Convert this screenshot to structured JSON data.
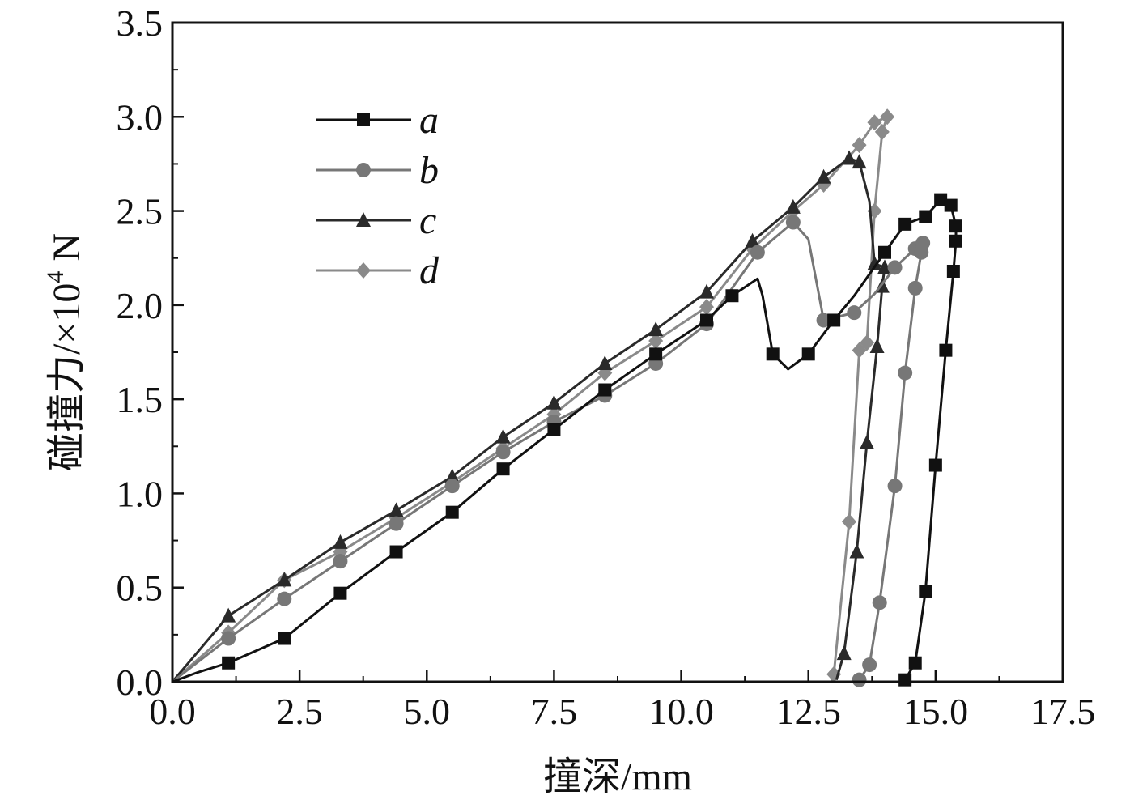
{
  "chart_data": {
    "type": "line",
    "xlabel": "撞深/mm",
    "ylabel_main": "碰撞力/×10",
    "ylabel_sup": "4",
    "ylabel_unit": " N",
    "xlim": [
      0,
      17.5
    ],
    "ylim": [
      0,
      3.5
    ],
    "x_ticks": [
      0,
      2.5,
      5,
      7.5,
      10,
      12.5,
      15,
      17.5
    ],
    "y_ticks": [
      0,
      0.5,
      1,
      1.5,
      2,
      2.5,
      3,
      3.5
    ],
    "x_tick_labels": [
      "0.0",
      "2.5",
      "5.0",
      "7.5",
      "10.0",
      "12.5",
      "15.0",
      "17.5"
    ],
    "y_tick_labels": [
      "0.0",
      "0.5",
      "1.0",
      "1.5",
      "2.0",
      "2.5",
      "3.0",
      "3.5"
    ],
    "grid": false,
    "legend_position": "top-left",
    "series": [
      {
        "name": "a",
        "color": "#111111",
        "marker": "square",
        "line": [
          [
            0,
            0
          ],
          [
            0.5,
            0.05
          ],
          [
            1.1,
            0.1
          ],
          [
            2.2,
            0.23
          ],
          [
            3.3,
            0.47
          ],
          [
            4.4,
            0.69
          ],
          [
            5.5,
            0.9
          ],
          [
            6.5,
            1.13
          ],
          [
            7.5,
            1.34
          ],
          [
            8.5,
            1.55
          ],
          [
            9.5,
            1.74
          ],
          [
            10.5,
            1.92
          ],
          [
            11,
            2.05
          ],
          [
            11.5,
            2.14
          ],
          [
            11.6,
            2.05
          ],
          [
            11.8,
            1.74
          ],
          [
            12.1,
            1.66
          ],
          [
            12.5,
            1.74
          ],
          [
            13,
            1.92
          ],
          [
            13.4,
            2.05
          ],
          [
            14,
            2.28
          ],
          [
            14.4,
            2.43
          ],
          [
            14.8,
            2.47
          ],
          [
            15.1,
            2.56
          ],
          [
            15.3,
            2.53
          ],
          [
            15.4,
            2.42
          ],
          [
            15.4,
            2.34
          ],
          [
            15.35,
            2.18
          ],
          [
            15.2,
            1.76
          ],
          [
            15,
            1.15
          ],
          [
            14.8,
            0.48
          ],
          [
            14.6,
            0.1
          ],
          [
            14.4,
            0.01
          ]
        ],
        "markers": [
          [
            1.1,
            0.1
          ],
          [
            2.2,
            0.23
          ],
          [
            3.3,
            0.47
          ],
          [
            4.4,
            0.69
          ],
          [
            5.5,
            0.9
          ],
          [
            6.5,
            1.13
          ],
          [
            7.5,
            1.34
          ],
          [
            8.5,
            1.55
          ],
          [
            9.5,
            1.74
          ],
          [
            10.5,
            1.92
          ],
          [
            11,
            2.05
          ],
          [
            11.8,
            1.74
          ],
          [
            12.5,
            1.74
          ],
          [
            13,
            1.92
          ],
          [
            14,
            2.28
          ],
          [
            14.4,
            2.43
          ],
          [
            14.8,
            2.47
          ],
          [
            15.1,
            2.56
          ],
          [
            15.3,
            2.53
          ],
          [
            15.4,
            2.42
          ],
          [
            15.4,
            2.34
          ],
          [
            15.35,
            2.18
          ],
          [
            15.2,
            1.76
          ],
          [
            15,
            1.15
          ],
          [
            14.8,
            0.48
          ],
          [
            14.6,
            0.1
          ],
          [
            14.4,
            0.01
          ]
        ]
      },
      {
        "name": "b",
        "color": "#777777",
        "marker": "circle",
        "line": [
          [
            0,
            0
          ],
          [
            1.1,
            0.23
          ],
          [
            2.2,
            0.44
          ],
          [
            3.3,
            0.64
          ],
          [
            4.4,
            0.84
          ],
          [
            5.5,
            1.04
          ],
          [
            6.5,
            1.22
          ],
          [
            7.5,
            1.38
          ],
          [
            8.5,
            1.52
          ],
          [
            9.5,
            1.69
          ],
          [
            10.5,
            1.9
          ],
          [
            11.5,
            2.28
          ],
          [
            12.2,
            2.44
          ],
          [
            12.5,
            2.35
          ],
          [
            12.8,
            1.92
          ],
          [
            13.4,
            1.96
          ],
          [
            13.8,
            2.06
          ],
          [
            14.2,
            2.2
          ],
          [
            14.6,
            2.3
          ],
          [
            14.75,
            2.33
          ],
          [
            14.72,
            2.28
          ],
          [
            14.6,
            2.09
          ],
          [
            14.4,
            1.64
          ],
          [
            14.2,
            1.04
          ],
          [
            13.9,
            0.42
          ],
          [
            13.7,
            0.09
          ],
          [
            13.5,
            0.01
          ]
        ],
        "markers": [
          [
            1.1,
            0.23
          ],
          [
            2.2,
            0.44
          ],
          [
            3.3,
            0.64
          ],
          [
            4.4,
            0.84
          ],
          [
            5.5,
            1.04
          ],
          [
            6.5,
            1.22
          ],
          [
            7.5,
            1.38
          ],
          [
            8.5,
            1.52
          ],
          [
            9.5,
            1.69
          ],
          [
            10.5,
            1.9
          ],
          [
            11.5,
            2.28
          ],
          [
            12.2,
            2.44
          ],
          [
            12.8,
            1.92
          ],
          [
            13.4,
            1.96
          ],
          [
            14.2,
            2.2
          ],
          [
            14.6,
            2.3
          ],
          [
            14.75,
            2.33
          ],
          [
            14.72,
            2.28
          ],
          [
            14.6,
            2.09
          ],
          [
            14.4,
            1.64
          ],
          [
            14.2,
            1.04
          ],
          [
            13.9,
            0.42
          ],
          [
            13.7,
            0.09
          ],
          [
            13.5,
            0.01
          ]
        ]
      },
      {
        "name": "c",
        "color": "#2a2a2a",
        "marker": "triangle",
        "line": [
          [
            0,
            0
          ],
          [
            1.1,
            0.35
          ],
          [
            2.2,
            0.54
          ],
          [
            3.3,
            0.74
          ],
          [
            4.4,
            0.91
          ],
          [
            5.5,
            1.09
          ],
          [
            6.5,
            1.3
          ],
          [
            7.5,
            1.48
          ],
          [
            8.5,
            1.69
          ],
          [
            9.5,
            1.87
          ],
          [
            10.5,
            2.07
          ],
          [
            11.4,
            2.34
          ],
          [
            12.2,
            2.52
          ],
          [
            12.8,
            2.68
          ],
          [
            13.3,
            2.78
          ],
          [
            13.5,
            2.76
          ],
          [
            13.7,
            2.55
          ],
          [
            13.8,
            2.22
          ],
          [
            14,
            2.2
          ],
          [
            13.95,
            2.1
          ],
          [
            13.85,
            1.78
          ],
          [
            13.65,
            1.27
          ],
          [
            13.45,
            0.69
          ],
          [
            13.2,
            0.15
          ],
          [
            13.05,
            0.01
          ]
        ],
        "markers": [
          [
            1.1,
            0.35
          ],
          [
            2.2,
            0.54
          ],
          [
            3.3,
            0.74
          ],
          [
            4.4,
            0.91
          ],
          [
            5.5,
            1.09
          ],
          [
            6.5,
            1.3
          ],
          [
            7.5,
            1.48
          ],
          [
            8.5,
            1.69
          ],
          [
            9.5,
            1.87
          ],
          [
            10.5,
            2.07
          ],
          [
            11.4,
            2.34
          ],
          [
            12.2,
            2.52
          ],
          [
            12.8,
            2.68
          ],
          [
            13.3,
            2.78
          ],
          [
            13.5,
            2.76
          ],
          [
            13.8,
            2.22
          ],
          [
            14,
            2.2
          ],
          [
            13.95,
            2.1
          ],
          [
            13.85,
            1.78
          ],
          [
            13.65,
            1.27
          ],
          [
            13.45,
            0.69
          ],
          [
            13.2,
            0.15
          ]
        ]
      },
      {
        "name": "d",
        "color": "#8a8a8a",
        "marker": "diamond",
        "line": [
          [
            0,
            0
          ],
          [
            1.1,
            0.26
          ],
          [
            2.2,
            0.54
          ],
          [
            3.3,
            0.69
          ],
          [
            4.4,
            0.87
          ],
          [
            5.5,
            1.06
          ],
          [
            6.5,
            1.24
          ],
          [
            7.5,
            1.42
          ],
          [
            8.5,
            1.64
          ],
          [
            9.5,
            1.81
          ],
          [
            10.5,
            1.99
          ],
          [
            11.4,
            2.3
          ],
          [
            12.2,
            2.5
          ],
          [
            12.8,
            2.64
          ],
          [
            13.5,
            2.85
          ],
          [
            13.8,
            2.97
          ],
          [
            14.05,
            3
          ],
          [
            13.95,
            2.92
          ],
          [
            13.8,
            2.5
          ],
          [
            13.65,
            1.8
          ],
          [
            13.5,
            1.76
          ],
          [
            13.3,
            0.85
          ],
          [
            13,
            0.04
          ],
          [
            12.95,
            0
          ]
        ],
        "markers": [
          [
            1.1,
            0.26
          ],
          [
            2.2,
            0.54
          ],
          [
            3.3,
            0.69
          ],
          [
            4.4,
            0.87
          ],
          [
            5.5,
            1.06
          ],
          [
            6.5,
            1.24
          ],
          [
            7.5,
            1.42
          ],
          [
            8.5,
            1.64
          ],
          [
            9.5,
            1.81
          ],
          [
            10.5,
            1.99
          ],
          [
            11.4,
            2.3
          ],
          [
            12.2,
            2.5
          ],
          [
            12.8,
            2.64
          ],
          [
            13.5,
            2.85
          ],
          [
            13.8,
            2.97
          ],
          [
            14.05,
            3
          ],
          [
            13.95,
            2.92
          ],
          [
            13.8,
            2.5
          ],
          [
            13.65,
            1.8
          ],
          [
            13.5,
            1.76
          ],
          [
            13.3,
            0.85
          ],
          [
            13,
            0.04
          ]
        ]
      }
    ]
  }
}
